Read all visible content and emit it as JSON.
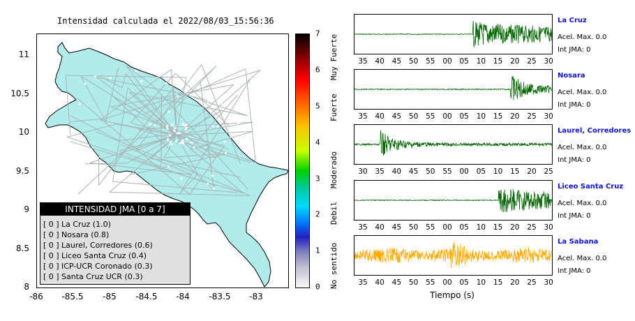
{
  "map": {
    "title": "Intensidad calculada el 2022/08/03_15:56:36",
    "x_ticks": [
      "-86",
      "-85.5",
      "-85",
      "-84.5",
      "-84",
      "-83.5",
      "-83"
    ],
    "y_ticks": [
      "11",
      "10.5",
      "10",
      "9.5",
      "9",
      "8.5",
      "8"
    ],
    "land_color": "#b0ecec",
    "road_color": "#a8b4b4"
  },
  "colorbar": {
    "ticks": [
      "7",
      "6",
      "5",
      "4",
      "3",
      "2",
      "1",
      "0"
    ],
    "labels": [
      "Muy Fuerte",
      "Fuerte",
      "Moderado",
      "Debil",
      "No sentido"
    ]
  },
  "legend": {
    "title": "INTENSIDAD JMA [0 a 7]",
    "rows": [
      {
        "bracket": "[ 0 ]",
        "station": "La Cruz (1.0)"
      },
      {
        "bracket": "[ 0 ]",
        "station": "Nosara (0.8)"
      },
      {
        "bracket": "[ 0 ]",
        "station": "Laurel, Corredores (0.6)"
      },
      {
        "bracket": "[ 0 ]",
        "station": "Liceo Santa Cruz (0.4)"
      },
      {
        "bracket": "[ 0 ]",
        "station": "ICP-UCR Coronado (0.3)"
      },
      {
        "bracket": "[ 0 ]",
        "station": "Santa Cruz UCR (0.3)"
      }
    ]
  },
  "traces": [
    {
      "name": "La Cruz",
      "accel": "Acel. Max. 0.0",
      "jma": "Int JMA: 0",
      "color": "#006400",
      "ticks": [
        "35",
        "40",
        "45",
        "50",
        "55",
        "00",
        "05",
        "10",
        "15",
        "20",
        "25",
        "30"
      ]
    },
    {
      "name": "Nosara",
      "accel": "Acel. Max. 0.0",
      "jma": "Int JMA: 0",
      "color": "#006400",
      "ticks": [
        "35",
        "40",
        "45",
        "50",
        "55",
        "00",
        "05",
        "10",
        "15",
        "20",
        "25",
        "30"
      ]
    },
    {
      "name": "Laurel, Corredores",
      "accel": "Acel. Max. 0.0",
      "jma": "Int JMA: 0",
      "color": "#006400",
      "ticks": [
        "30",
        "35",
        "40",
        "45",
        "50",
        "55",
        "00",
        "05",
        "10",
        "15",
        "20",
        "25"
      ]
    },
    {
      "name": "Liceo Santa Cruz",
      "accel": "Acel. Max. 0.0",
      "jma": "Int JMA: 0",
      "color": "#006400",
      "ticks": [
        "35",
        "40",
        "45",
        "50",
        "55",
        "00",
        "05",
        "10",
        "15",
        "20",
        "25",
        "30"
      ]
    },
    {
      "name": "La Sabana",
      "accel": "Acel. Max. 0.0",
      "jma": "Int JMA: 0",
      "color": "#ffaa00",
      "ticks": [
        "35",
        "40",
        "45",
        "50",
        "55",
        "00",
        "05",
        "10",
        "15",
        "20",
        "25",
        "30"
      ]
    }
  ],
  "xaxis_label": "Tiempo (s)",
  "chart_data": [
    {
      "type": "scatter",
      "title": "Intensidad calculada el 2022/08/03_15:56:36",
      "xlim": [
        -86,
        -82.6
      ],
      "ylim": [
        8,
        11.3
      ],
      "xlabel": "",
      "ylabel": "",
      "colorbar_range": [
        0,
        7
      ]
    },
    {
      "type": "line",
      "xlabel": "Tiempo (s)",
      "series": [
        {
          "name": "La Cruz",
          "onset_tick": "09"
        },
        {
          "name": "Nosara",
          "onset_tick": "20"
        },
        {
          "name": "Laurel, Corredores",
          "onset_tick": "35"
        },
        {
          "name": "Liceo Santa Cruz",
          "onset_tick": "17"
        },
        {
          "name": "La Sabana"
        }
      ]
    }
  ]
}
